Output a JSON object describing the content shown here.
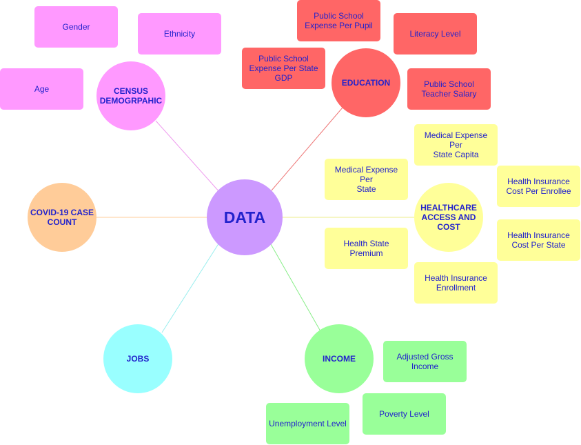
{
  "colors": {
    "ink": "#2222cc",
    "center": "#cc99ff",
    "census": "#ff99ff",
    "education": "#ff6666",
    "healthcare": "#ffff99",
    "income": "#99ff99",
    "jobs": "#99ffff",
    "covid": "#ffcc99"
  },
  "diagram": {
    "center": "DATA",
    "hubs": {
      "census": "CENSUS\nDEMOGRPAHIC",
      "education": "EDUCATION",
      "healthcare": "HEALTHCARE\nACCESS AND\nCOST",
      "income": "INCOME",
      "jobs": "JOBS",
      "covid": "COVID-19 CASE\nCOUNT"
    },
    "leaves": {
      "census_gender": "Gender",
      "census_ethnicity": "Ethnicity",
      "census_age": "Age",
      "edu_pupil": "Public School\nExpense Per Pupil",
      "edu_literacy": "Literacy Level",
      "edu_gdp": "Public School\nExpense Per State\nGDP",
      "edu_salary": "Public School\nTeacher Salary",
      "hc_med_capita": "Medical Expense Per\nState Capita",
      "hc_med_state": "Medical Expense Per\nState",
      "hc_ins_enrollee": "Health Insurance\nCost Per Enrollee",
      "hc_ins_state": "Health Insurance\nCost Per State",
      "hc_premium": "Health State Premium",
      "hc_enrollment": "Health Insurance\nEnrollment",
      "inc_agi": "Adjusted Gross\nIncome",
      "inc_poverty": "Poverty Level",
      "inc_unemployment": "Unemployment Level"
    }
  }
}
